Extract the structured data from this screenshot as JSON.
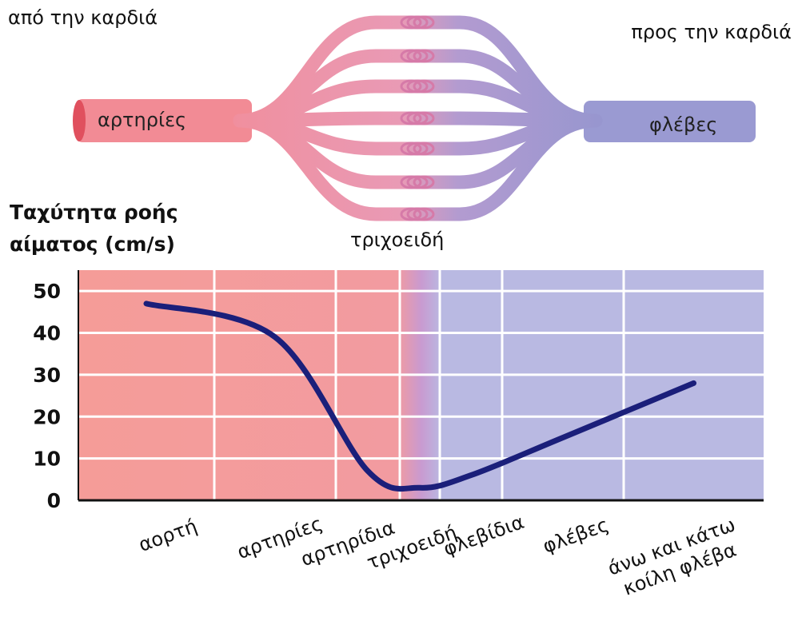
{
  "diagram": {
    "from_heart": "από την καρδιά",
    "to_heart": "προς την καρδιά",
    "arteries": "αρτηρίες",
    "veins": "φλέβες",
    "capillaries": "τριχοειδή"
  },
  "chart_data": {
    "type": "line",
    "ylabel": "Ταχύτητα ροής αίματος (cm/s)",
    "categories": [
      "αορτή",
      "αρτηρίες",
      "αρτηρίδια",
      "τριχοειδή",
      "φλεβίδια",
      "φλέβες",
      "άνω και κάτω κοίλη φλέβα"
    ],
    "values": [
      47,
      39,
      7,
      3,
      6,
      15,
      28
    ],
    "color": "#1b1f7a",
    "ylim": [
      0,
      55
    ],
    "yticks": [
      0,
      10,
      20,
      30,
      40,
      50
    ],
    "grid": true
  }
}
